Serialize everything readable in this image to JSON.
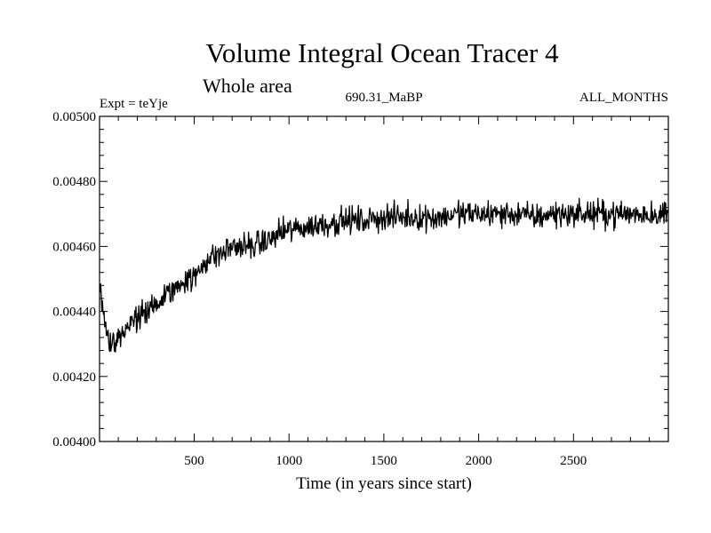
{
  "chart_data": {
    "type": "line",
    "title": "Volume Integral Ocean Tracer 4",
    "subtitle": "Whole area",
    "annotations": {
      "experiment": "Expt = teYje",
      "period": "690.31_MaBP",
      "months": "ALL_MONTHS"
    },
    "xlabel": "Time (in years since start)",
    "ylabel": "",
    "xlim": [
      1,
      3000
    ],
    "ylim": [
      0.004,
      0.005
    ],
    "x_ticks": [
      500,
      1000,
      1500,
      2000,
      2500
    ],
    "x_tick_labels": [
      "500",
      "1000",
      "1500",
      "2000",
      "2500"
    ],
    "y_ticks": [
      0.004,
      0.0042,
      0.0044,
      0.0046,
      0.0048,
      0.005
    ],
    "y_tick_labels": [
      "0.00400",
      "0.00420",
      "0.00440",
      "0.00460",
      "0.00480",
      "0.00500"
    ],
    "grid": false,
    "series": [
      {
        "name": "Volume Integral Ocean Tracer 4",
        "color": "#000000",
        "x": [
          1,
          50,
          100,
          150,
          200,
          250,
          300,
          350,
          400,
          450,
          500,
          550,
          600,
          650,
          700,
          750,
          800,
          850,
          900,
          950,
          1000,
          1100,
          1200,
          1300,
          1400,
          1500,
          1600,
          1700,
          1800,
          1900,
          2000,
          2100,
          2200,
          2300,
          2400,
          2500,
          2600,
          2700,
          2800,
          2900,
          3000
        ],
        "values": [
          0.00448,
          0.0043,
          0.00432,
          0.00435,
          0.00438,
          0.0044,
          0.00442,
          0.00445,
          0.00447,
          0.0045,
          0.0045,
          0.00455,
          0.00457,
          0.00458,
          0.0046,
          0.0046,
          0.0046,
          0.00461,
          0.00462,
          0.00464,
          0.00465,
          0.00466,
          0.00467,
          0.00468,
          0.00468,
          0.00469,
          0.00469,
          0.00469,
          0.00469,
          0.0047,
          0.0047,
          0.0047,
          0.0047,
          0.00469,
          0.0047,
          0.0047,
          0.0047,
          0.0047,
          0.0047,
          0.0047,
          0.0047
        ],
        "noise_amplitude": 6e-05
      }
    ]
  }
}
